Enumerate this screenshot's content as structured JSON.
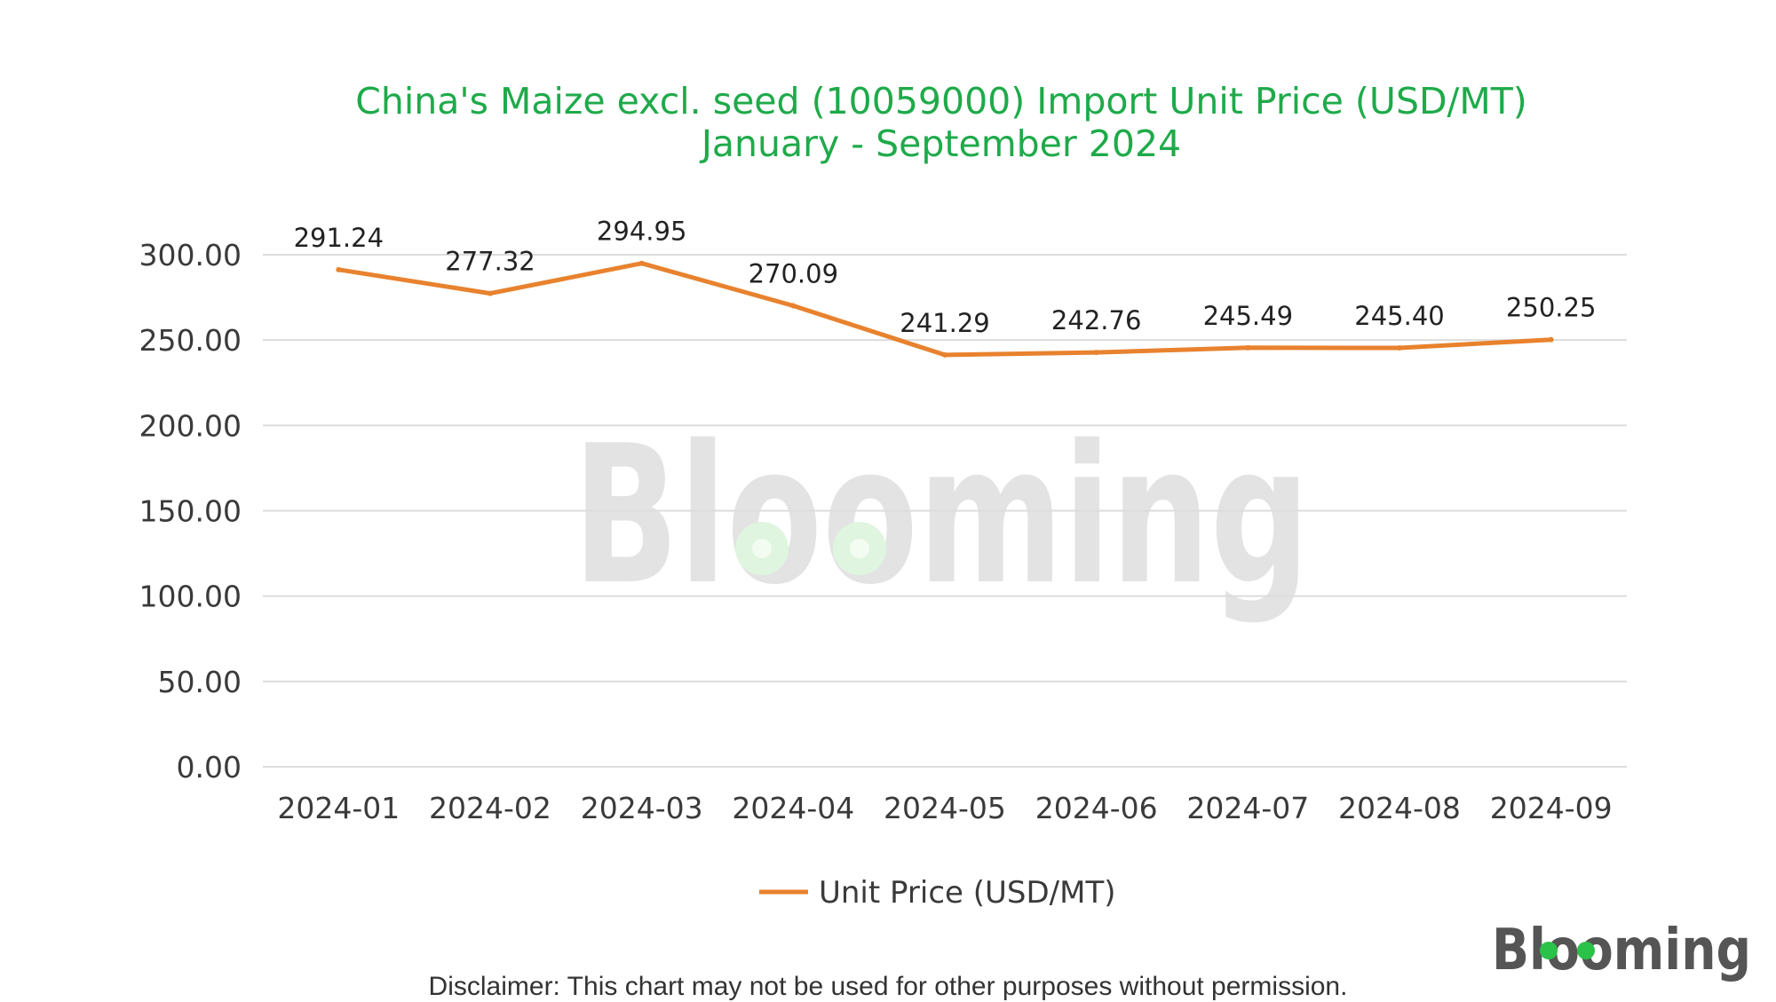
{
  "chart_data": {
    "type": "line",
    "title": "China's Maize excl. seed (10059000) Import Unit Price (USD/MT)",
    "subtitle": "January - September 2024",
    "categories": [
      "2024-01",
      "2024-02",
      "2024-03",
      "2024-04",
      "2024-05",
      "2024-06",
      "2024-07",
      "2024-08",
      "2024-09"
    ],
    "series": [
      {
        "name": "Unit Price (USD/MT)",
        "values": [
          291.24,
          277.32,
          294.95,
          270.09,
          241.29,
          242.76,
          245.49,
          245.4,
          250.25
        ],
        "labels": [
          "291.24",
          "277.32",
          "294.95",
          "270.09",
          "241.29",
          "242.76",
          "245.49",
          "245.40",
          "250.25"
        ],
        "color": "#e8822e"
      }
    ],
    "y_ticks": [
      "0.00",
      "50.00",
      "100.00",
      "150.00",
      "200.00",
      "250.00",
      "300.00"
    ],
    "ylim": [
      0,
      300
    ],
    "grid": true,
    "legend_position": "bottom",
    "xlabel": "",
    "ylabel": ""
  },
  "watermark": "Blooming",
  "logo": "Blooming",
  "brand_colors": {
    "title": "#1faa4a",
    "line": "#e8822e",
    "logo_accent": "#2bc24a"
  },
  "disclaimer": "Disclaimer: This chart may not be used for other purposes without permission."
}
